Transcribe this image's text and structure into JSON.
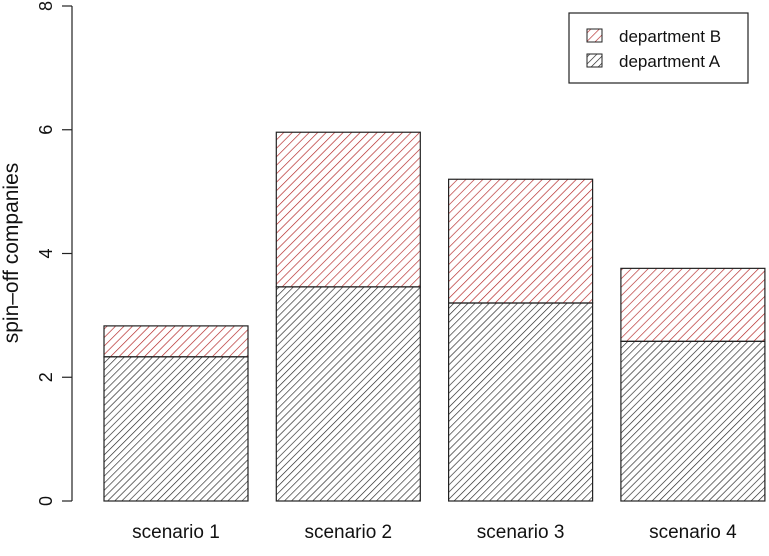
{
  "chart_data": {
    "type": "bar",
    "stacked": true,
    "title": "",
    "xlabel": "",
    "ylabel": "spin–off companies",
    "ylim": [
      0,
      8
    ],
    "yticks": [
      "0",
      "2",
      "4",
      "6",
      "8"
    ],
    "categories": [
      "scenario 1",
      "scenario 2",
      "scenario 3",
      "scenario 4"
    ],
    "series": [
      {
        "name": "department A",
        "values": [
          2.33,
          3.46,
          3.2,
          2.58
        ],
        "color": "#222222",
        "pattern": "diagonal-hatch"
      },
      {
        "name": "department B",
        "values": [
          0.5,
          2.5,
          2.0,
          1.18
        ],
        "color": "#b22222",
        "pattern": "diagonal-hatch"
      }
    ],
    "legend": {
      "position": "top-right",
      "entries": [
        "department B",
        "department A"
      ]
    },
    "grid": false
  }
}
